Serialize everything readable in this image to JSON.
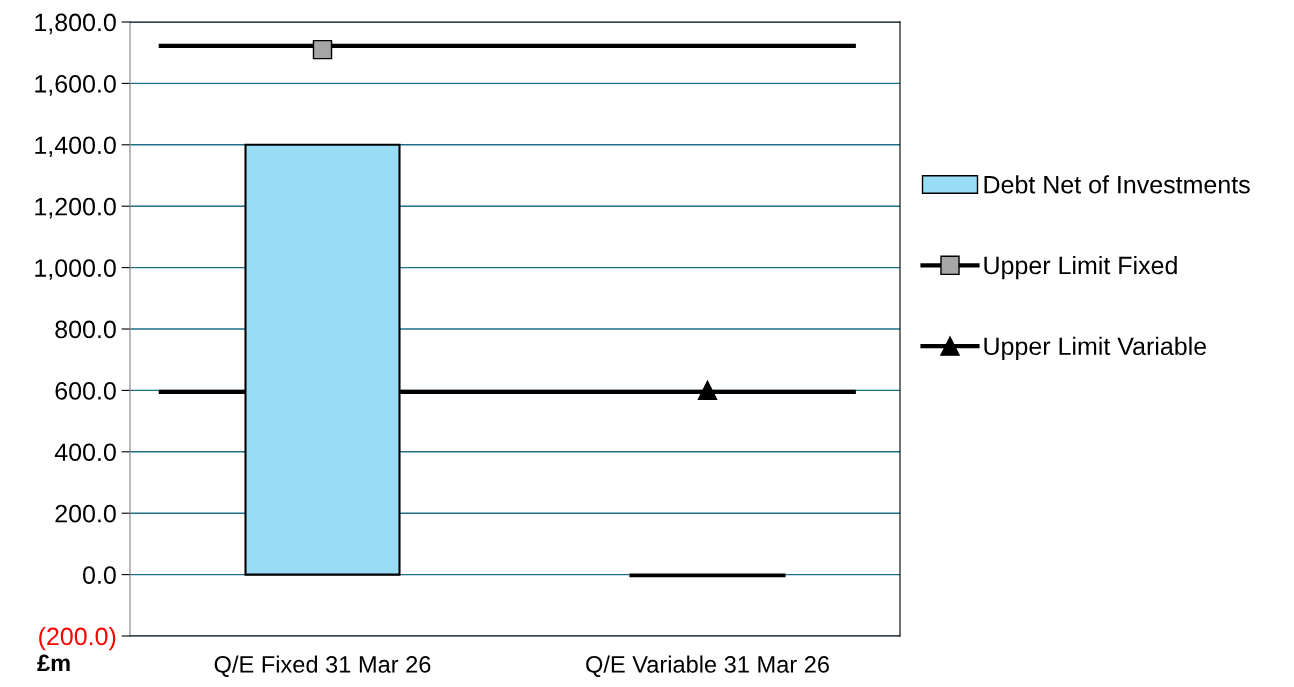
{
  "chart_data": {
    "type": "bar",
    "categories": [
      "Q/E Fixed 31 Mar 26",
      "Q/E Variable 31 Mar 26"
    ],
    "series": [
      {
        "name": "Debt Net of Investments",
        "color": "#99dcf6",
        "values": [
          1400,
          -5
        ]
      },
      {
        "name": "Upper Limit Fixed",
        "type": "line",
        "color": "#a6a6a6",
        "marker": "square",
        "values": [
          1710,
          null
        ]
      },
      {
        "name": "Upper Limit Variable",
        "type": "line",
        "color": "#000000",
        "marker": "triangle",
        "values": [
          null,
          600
        ]
      }
    ],
    "ref_lines": [
      {
        "axis": "y",
        "value": 1722,
        "color": "#000000"
      },
      {
        "axis": "y",
        "value": 595,
        "color": "#000000"
      }
    ],
    "ylim": [
      -200,
      1800
    ],
    "yticks": [
      {
        "value": -200,
        "label": "(200.0)"
      },
      {
        "value": 0,
        "label": "0.0"
      },
      {
        "value": 200,
        "label": "200.0"
      },
      {
        "value": 400,
        "label": "400.0"
      },
      {
        "value": 600,
        "label": "600.0"
      },
      {
        "value": 800,
        "label": "800.0"
      },
      {
        "value": 1000,
        "label": "1,000.0"
      },
      {
        "value": 1200,
        "label": "1,200.0"
      },
      {
        "value": 1400,
        "label": "1,400.0"
      },
      {
        "value": 1600,
        "label": "1,600.0"
      },
      {
        "value": 1800,
        "label": "1,800.0"
      }
    ],
    "grid": "y",
    "legend": "right",
    "annotations": [
      "£m"
    ]
  }
}
